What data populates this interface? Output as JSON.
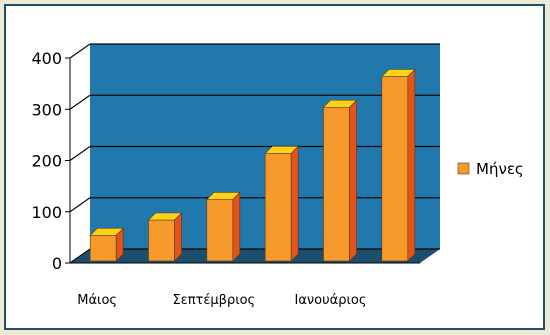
{
  "chart_data": {
    "type": "bar",
    "style": "3d",
    "categories": [
      "Μάιος",
      "",
      "Σεπτέμβριος",
      "",
      "Ιανουάριος",
      ""
    ],
    "series": [
      {
        "name": "Μήνες",
        "values": [
          50,
          80,
          120,
          210,
          300,
          360
        ]
      }
    ],
    "y_ticks": [
      "0",
      "100",
      "200",
      "300",
      "400"
    ],
    "ylim": [
      0,
      400
    ],
    "grid": true,
    "legend_position": "right",
    "colors": {
      "back_wall": "#2078ad",
      "floor": "#1c4f6e",
      "gridline": "#0a0a0a",
      "bar_front": "#f79a2e",
      "bar_top": "#ffd21a",
      "bar_side": "#e2541c",
      "frame_border": "#1f4f6e",
      "background": "#ecead2"
    }
  }
}
